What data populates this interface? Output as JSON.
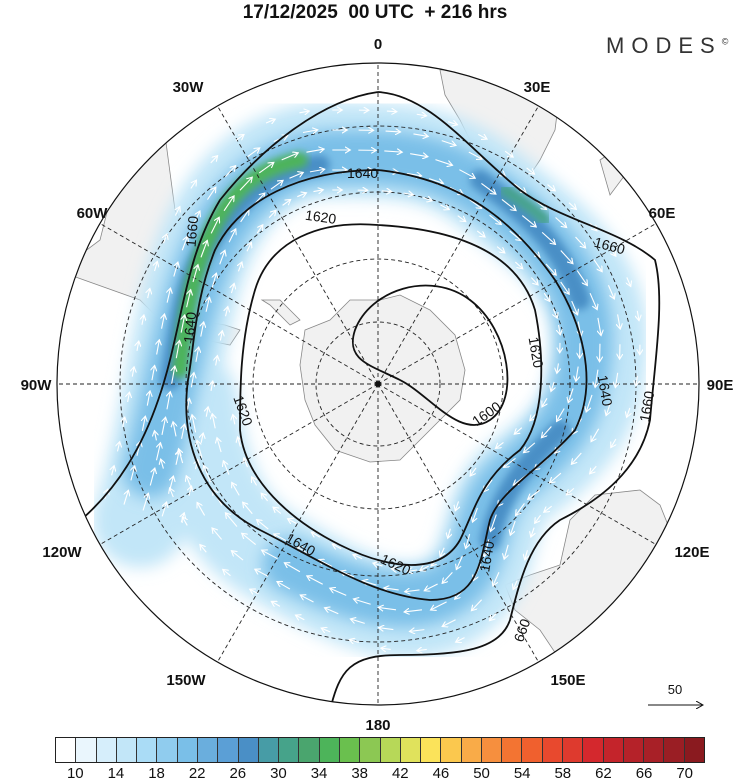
{
  "title": "17/12/2025  00 UTC  + 216 hrs",
  "logo": "MODES",
  "logo_mark": "©",
  "longitude_labels": {
    "n0": "0",
    "e30": "30E",
    "e60": "60E",
    "e90": "90E",
    "e120": "120E",
    "e150": "150E",
    "s180": "180",
    "w150": "150W",
    "w120": "120W",
    "w90": "90W",
    "w60": "60W",
    "w30": "30W"
  },
  "contour_labels": {
    "c1600": "1600",
    "c1620_top": "1620",
    "c1620_left": "1620",
    "c1620_right": "1620",
    "c1620_bottom": "1620",
    "c1640_top": "1640",
    "c1640_left": "1640",
    "c1640_right": "1640",
    "c1640_bottom": "1640",
    "c1640_se": "1640",
    "c1660_left": "1660",
    "c1660_ne": "1660",
    "c1660_right": "1660",
    "c1660_se": "660"
  },
  "reference_vector": {
    "label": "50"
  },
  "colorbar": {
    "labels": [
      "10",
      "14",
      "18",
      "22",
      "26",
      "30",
      "34",
      "38",
      "42",
      "46",
      "50",
      "54",
      "58",
      "62",
      "66",
      "70"
    ],
    "colors": [
      "#ffffff",
      "#eaf6fd",
      "#d6eefb",
      "#c2e6f8",
      "#aadcf6",
      "#90ccee",
      "#7abfe8",
      "#6aaedd",
      "#5b9fd6",
      "#4a8fc6",
      "#479ca6",
      "#46a38a",
      "#4aa56e",
      "#4db45a",
      "#6ac04e",
      "#8cc853",
      "#b7d858",
      "#e0e25c",
      "#fbe35a",
      "#fbc84e",
      "#f9ab48",
      "#f68f3e",
      "#f37432",
      "#f0602e",
      "#e8492e",
      "#de3a2e",
      "#d4282d",
      "#c4242b",
      "#b52229",
      "#a82027",
      "#9a1e24",
      "#8a1a1f"
    ]
  }
}
